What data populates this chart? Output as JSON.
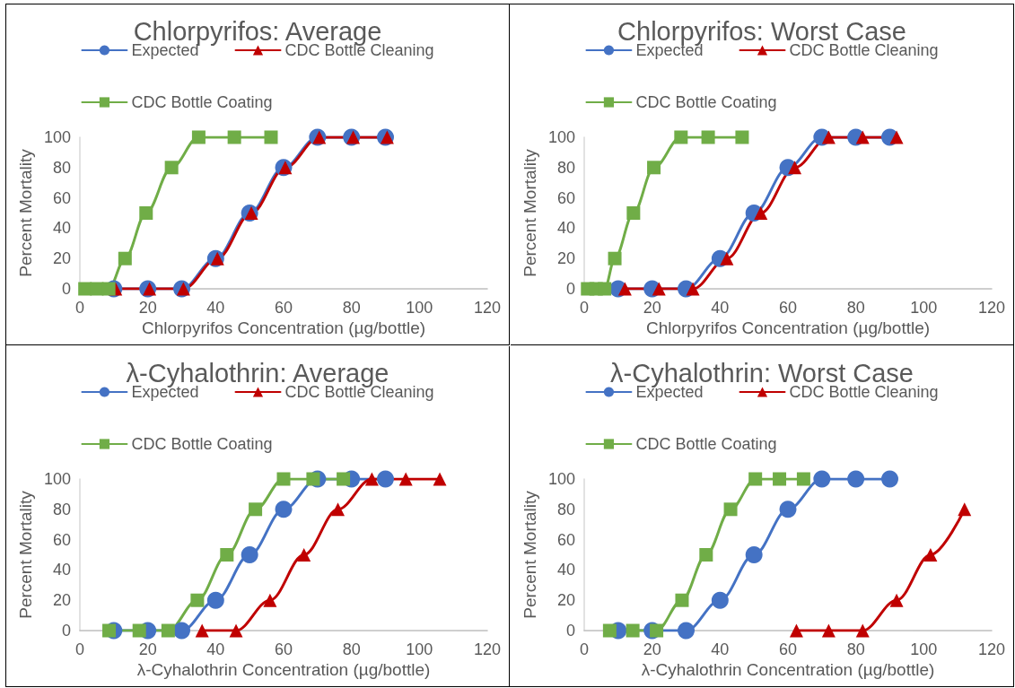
{
  "chart_data": [
    {
      "type": "line",
      "title": "Chlorpyrifos: Average",
      "xlabel": "Chlorpyrifos Concentration (µg/bottle)",
      "ylabel": "Percent Mortality",
      "xlim": [
        0,
        120
      ],
      "xticks": [
        0,
        20,
        40,
        60,
        80,
        100,
        120
      ],
      "ylim": [
        0,
        100
      ],
      "yticks": [
        0,
        20,
        40,
        60,
        80,
        100
      ],
      "grid": false,
      "legend": "top",
      "line_style": "solid",
      "series": [
        {
          "name": "Expected",
          "color": "#4472c4",
          "marker": "circle",
          "x": [
            10,
            20,
            30,
            40,
            50,
            60,
            70,
            80,
            90
          ],
          "values": [
            0,
            0,
            0,
            20,
            50,
            80,
            100,
            100,
            100
          ]
        },
        {
          "name": "CDC Bottle Cleaning",
          "color": "#c00000",
          "marker": "triangle",
          "x": [
            10.5,
            20.5,
            30.5,
            40.5,
            50.5,
            60.5,
            70.5,
            80.5,
            90.5
          ],
          "values": [
            0,
            0,
            0,
            20,
            50,
            80,
            100,
            100,
            100
          ]
        },
        {
          "name": "CDC Bottle Coating",
          "color": "#70ad47",
          "marker": "square",
          "x": [
            1.5,
            5,
            8.5,
            13.3,
            19.5,
            27,
            35,
            45.5,
            56.3
          ],
          "values": [
            0,
            0,
            0,
            20,
            50,
            80,
            100,
            100,
            100
          ]
        }
      ]
    },
    {
      "type": "line",
      "title": "Chlorpyrifos: Worst Case",
      "xlabel": "Chlorpyrifos Concentration (µg/bottle)",
      "ylabel": "Percent Mortality",
      "xlim": [
        0,
        120
      ],
      "xticks": [
        0,
        20,
        40,
        60,
        80,
        100,
        120
      ],
      "ylim": [
        0,
        100
      ],
      "yticks": [
        0,
        20,
        40,
        60,
        80,
        100
      ],
      "grid": false,
      "legend": "top",
      "line_style": "solid",
      "series": [
        {
          "name": "Expected",
          "color": "#4472c4",
          "marker": "circle",
          "x": [
            10,
            20,
            30,
            40,
            50,
            60,
            70,
            80,
            90
          ],
          "values": [
            0,
            0,
            0,
            20,
            50,
            80,
            100,
            100,
            100
          ]
        },
        {
          "name": "CDC Bottle Cleaning",
          "color": "#c00000",
          "marker": "triangle",
          "x": [
            12,
            22,
            32,
            42,
            52,
            62,
            72,
            82,
            92
          ],
          "values": [
            0,
            0,
            0,
            20,
            50,
            80,
            100,
            100,
            100
          ]
        },
        {
          "name": "CDC Bottle Coating",
          "color": "#70ad47",
          "marker": "square",
          "x": [
            1,
            3.5,
            6,
            9,
            14.5,
            20.5,
            28.5,
            36.5,
            46.5
          ],
          "values": [
            0,
            0,
            0,
            20,
            50,
            80,
            100,
            100,
            100
          ]
        }
      ]
    },
    {
      "type": "line",
      "title": "λ-Cyhalothrin: Average",
      "xlabel": "λ-Cyhalothrin Concentration (µg/bottle)",
      "ylabel": "Percent Mortality",
      "xlim": [
        0,
        120
      ],
      "xticks": [
        0,
        20,
        40,
        60,
        80,
        100,
        120
      ],
      "ylim": [
        0,
        100
      ],
      "yticks": [
        0,
        20,
        40,
        60,
        80,
        100
      ],
      "grid": false,
      "legend": "top",
      "line_style": "solid",
      "series": [
        {
          "name": "Expected",
          "color": "#4472c4",
          "marker": "circle",
          "x": [
            10,
            20,
            30,
            40,
            50,
            60,
            70,
            80,
            90
          ],
          "values": [
            0,
            0,
            0,
            20,
            50,
            80,
            100,
            100,
            100
          ]
        },
        {
          "name": "CDC Bottle Cleaning",
          "color": "#c00000",
          "marker": "triangle",
          "x": [
            36,
            46,
            56,
            66,
            76,
            86,
            96,
            106
          ],
          "values": [
            0,
            0,
            20,
            50,
            80,
            100,
            100,
            100
          ]
        },
        {
          "name": "CDC Bottle Coating",
          "color": "#70ad47",
          "marker": "square",
          "x": [
            8.6,
            17.5,
            26,
            34.6,
            43.3,
            51.7,
            60,
            68.7,
            77.6
          ],
          "values": [
            0,
            0,
            0,
            20,
            50,
            80,
            100,
            100,
            100
          ]
        }
      ]
    },
    {
      "type": "line",
      "title": "λ-Cyhalothrin: Worst Case",
      "xlabel": "λ-Cyhalothrin Concentration (µg/bottle)",
      "ylabel": "Percent Mortality",
      "xlim": [
        0,
        120
      ],
      "xticks": [
        0,
        20,
        40,
        60,
        80,
        100,
        120
      ],
      "ylim": [
        0,
        100
      ],
      "yticks": [
        0,
        20,
        40,
        60,
        80,
        100
      ],
      "grid": false,
      "legend": "top",
      "line_style": "solid",
      "series": [
        {
          "name": "Expected",
          "color": "#4472c4",
          "marker": "circle",
          "x": [
            10,
            20,
            30,
            40,
            50,
            60,
            70,
            80,
            90
          ],
          "values": [
            0,
            0,
            0,
            20,
            50,
            80,
            100,
            100,
            100
          ]
        },
        {
          "name": "CDC Bottle Cleaning",
          "color": "#c00000",
          "marker": "triangle",
          "x": [
            62.5,
            72,
            82,
            92,
            102,
            112
          ],
          "values": [
            0,
            0,
            0,
            20,
            50,
            80
          ]
        },
        {
          "name": "CDC Bottle Coating",
          "color": "#70ad47",
          "marker": "square",
          "x": [
            7.5,
            14.3,
            21.3,
            28.8,
            35.9,
            43.1,
            50.4,
            57.5,
            64.6
          ],
          "values": [
            0,
            0,
            0,
            20,
            50,
            80,
            100,
            100,
            100
          ]
        }
      ]
    }
  ]
}
